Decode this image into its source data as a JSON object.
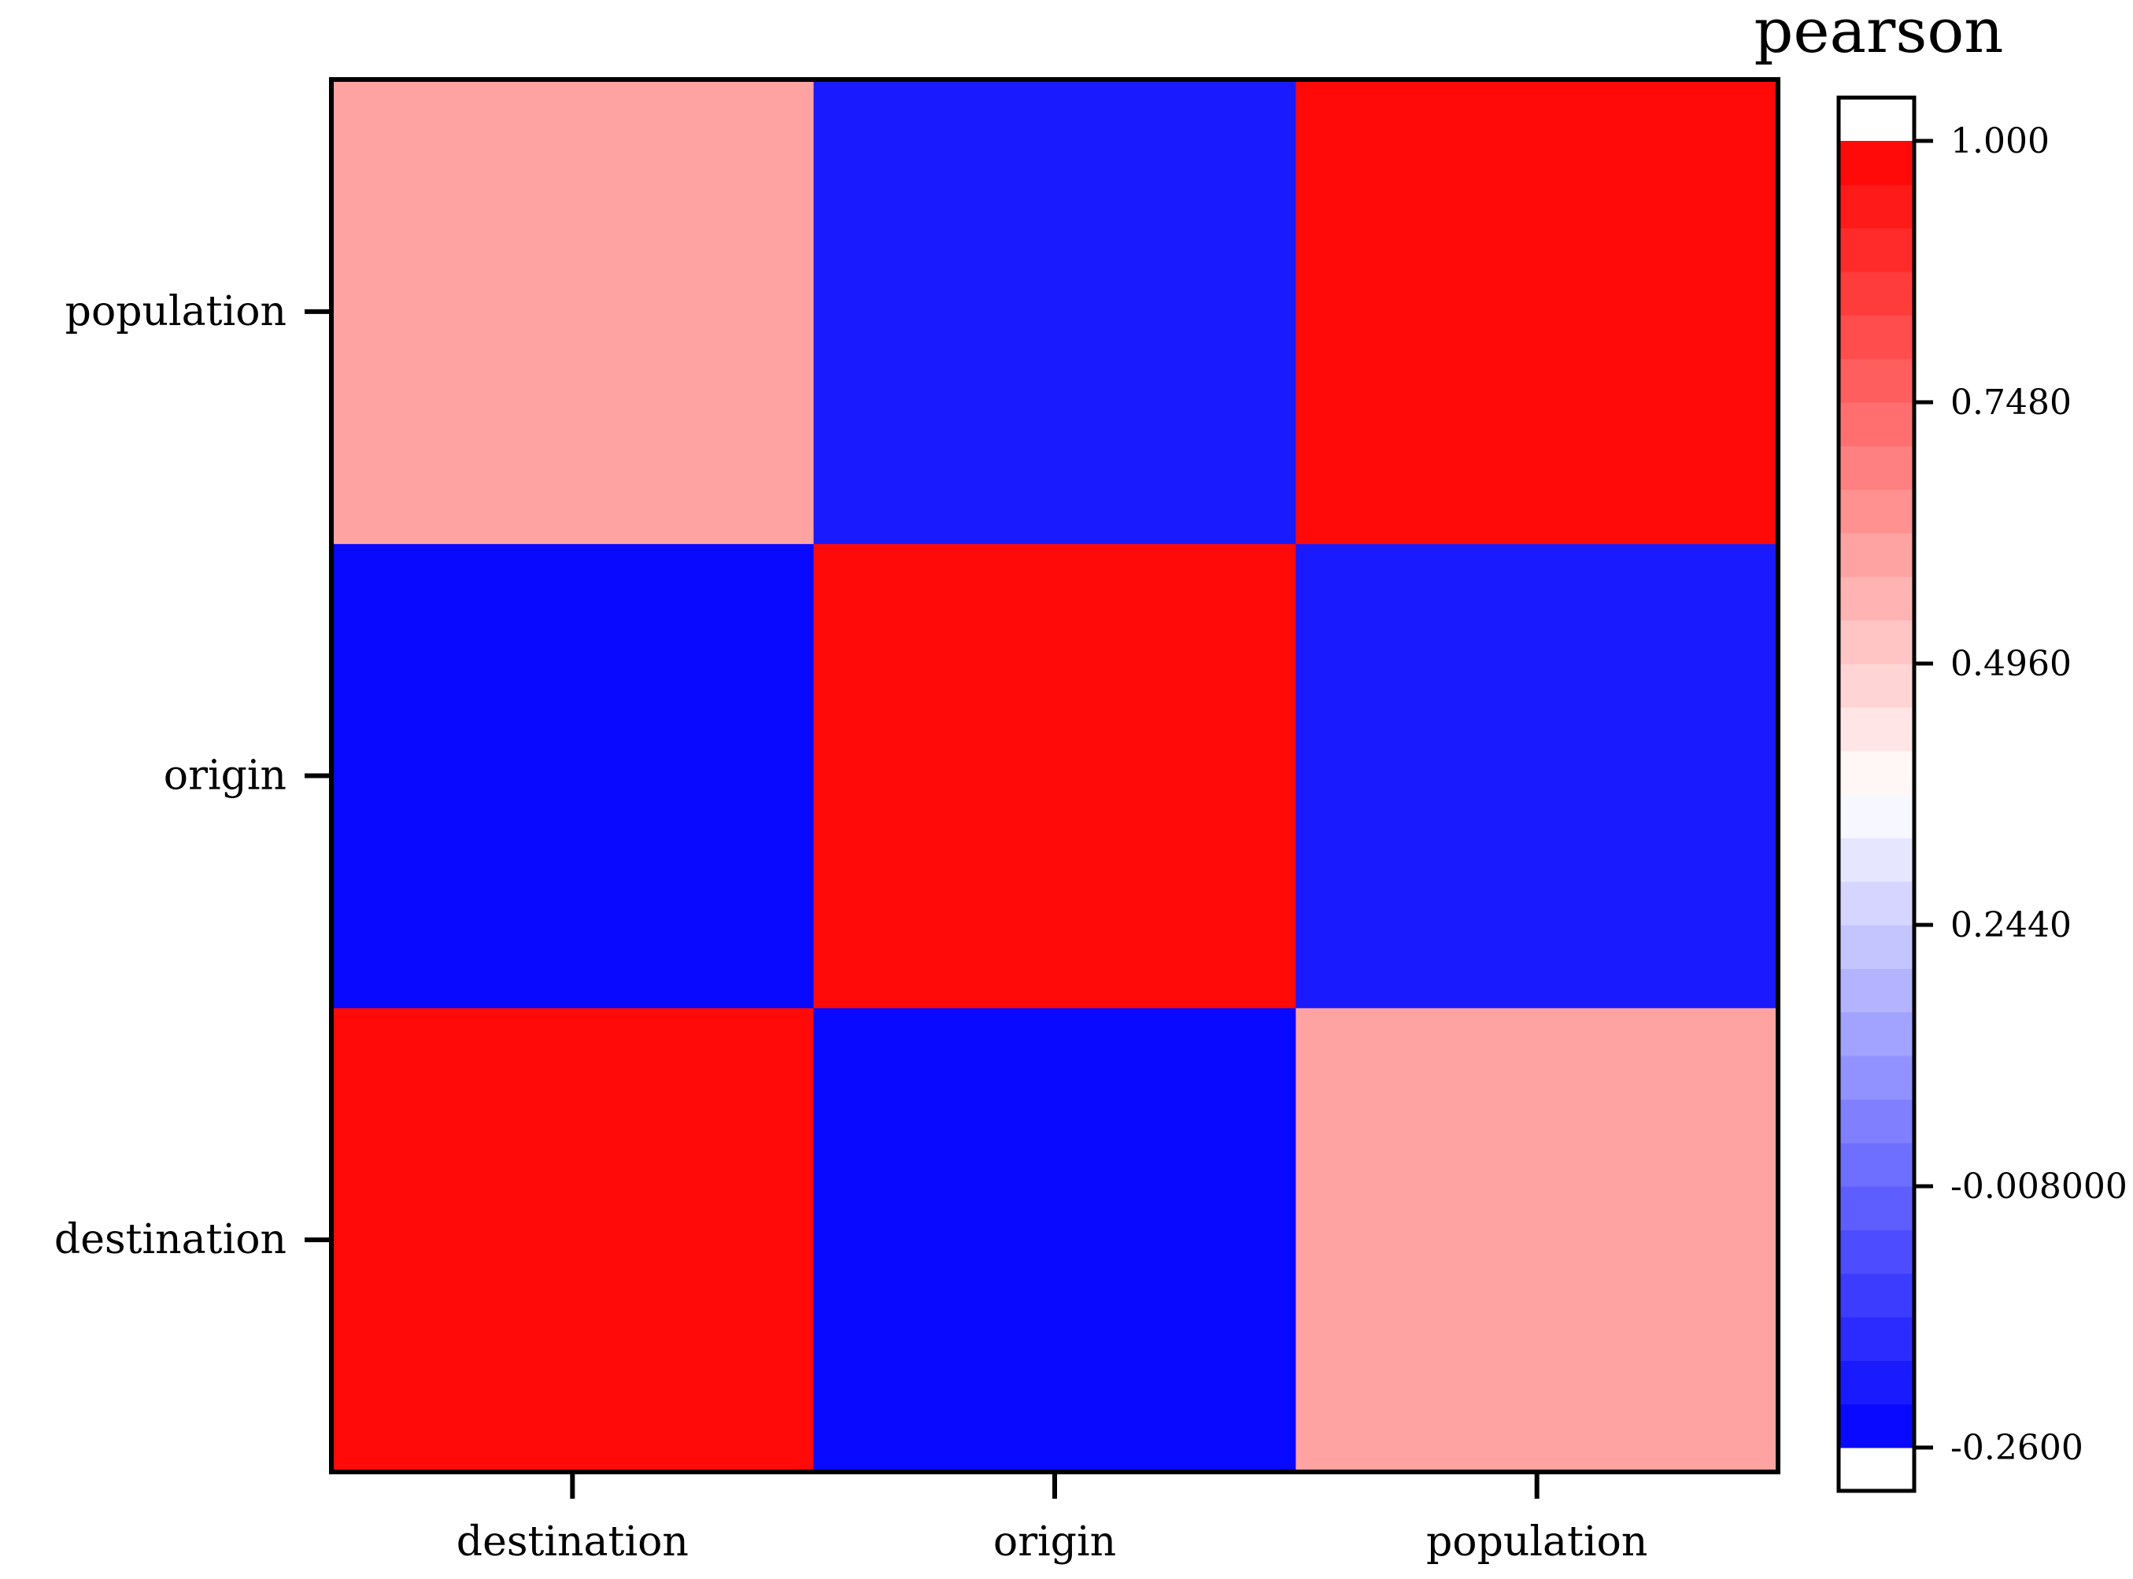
{
  "chart_data": {
    "type": "heatmap",
    "x_categories": [
      "destination",
      "origin",
      "population"
    ],
    "y_categories": [
      "destination",
      "origin",
      "population"
    ],
    "values": [
      [
        1.0,
        -0.26,
        0.62
      ],
      [
        -0.26,
        1.0,
        -0.19
      ],
      [
        0.62,
        -0.19,
        1.0
      ]
    ],
    "colorbar": {
      "title": "pearson",
      "min": -0.26,
      "max": 1.0,
      "levels": 30,
      "tick_values": [
        -0.26,
        -0.008,
        0.244,
        0.496,
        0.748,
        1.0
      ],
      "tick_labels": [
        "-0.2600",
        "-0.008000",
        "0.2440",
        "0.4960",
        "0.7480",
        "1.000"
      ],
      "colors": {
        "low": "#0000ff",
        "mid": "#ffffff",
        "high": "#ff0000"
      }
    }
  }
}
